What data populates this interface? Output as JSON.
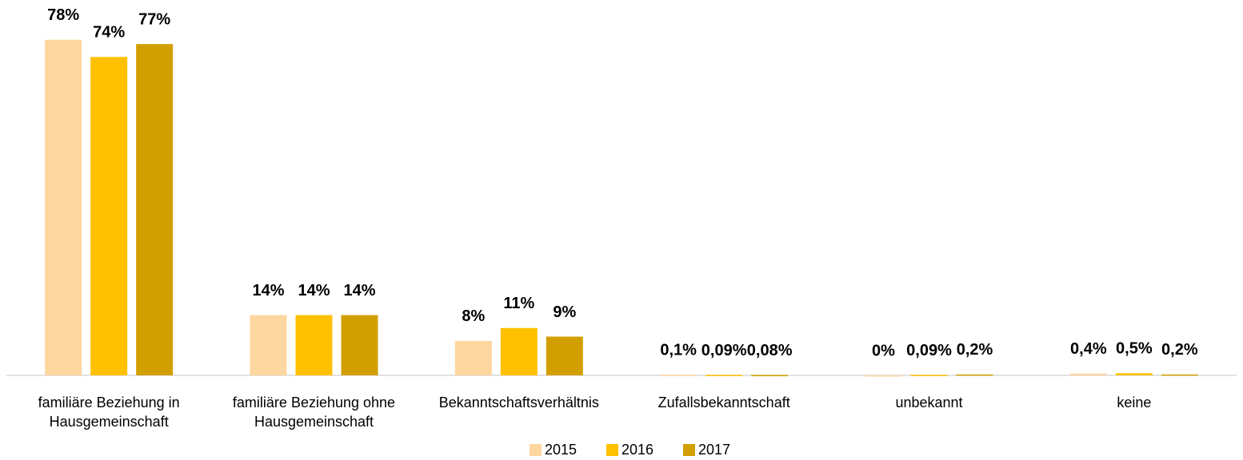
{
  "chart_data": {
    "type": "bar",
    "categories": [
      "familiäre Beziehung in Hausgemeinschaft",
      "familiäre Beziehung ohne Hausgemeinschaft",
      "Bekanntschaftsverhältnis",
      "Zufallsbekanntschaft",
      "unbekannt",
      "keine"
    ],
    "series": [
      {
        "name": "2015",
        "color": "#fdd6a0",
        "values": [
          78,
          14,
          8,
          0.1,
          0,
          0.4
        ],
        "value_labels": [
          "78%",
          "14%",
          "8%",
          "0,1%",
          "0%",
          "0,4%"
        ]
      },
      {
        "name": "2016",
        "color": "#ffc000",
        "values": [
          74,
          14,
          11,
          0.09,
          0.09,
          0.5
        ],
        "value_labels": [
          "74%",
          "14%",
          "11%",
          "0,09%",
          "0,09%",
          "0,5%"
        ]
      },
      {
        "name": "2017",
        "color": "#d1a000",
        "values": [
          77,
          14,
          9,
          0.08,
          0.2,
          0.2
        ],
        "value_labels": [
          "77%",
          "14%",
          "9%",
          "0,08%",
          "0,2%",
          "0,2%"
        ]
      }
    ],
    "ylim": [
      0,
      80
    ],
    "legend": "bottom"
  }
}
